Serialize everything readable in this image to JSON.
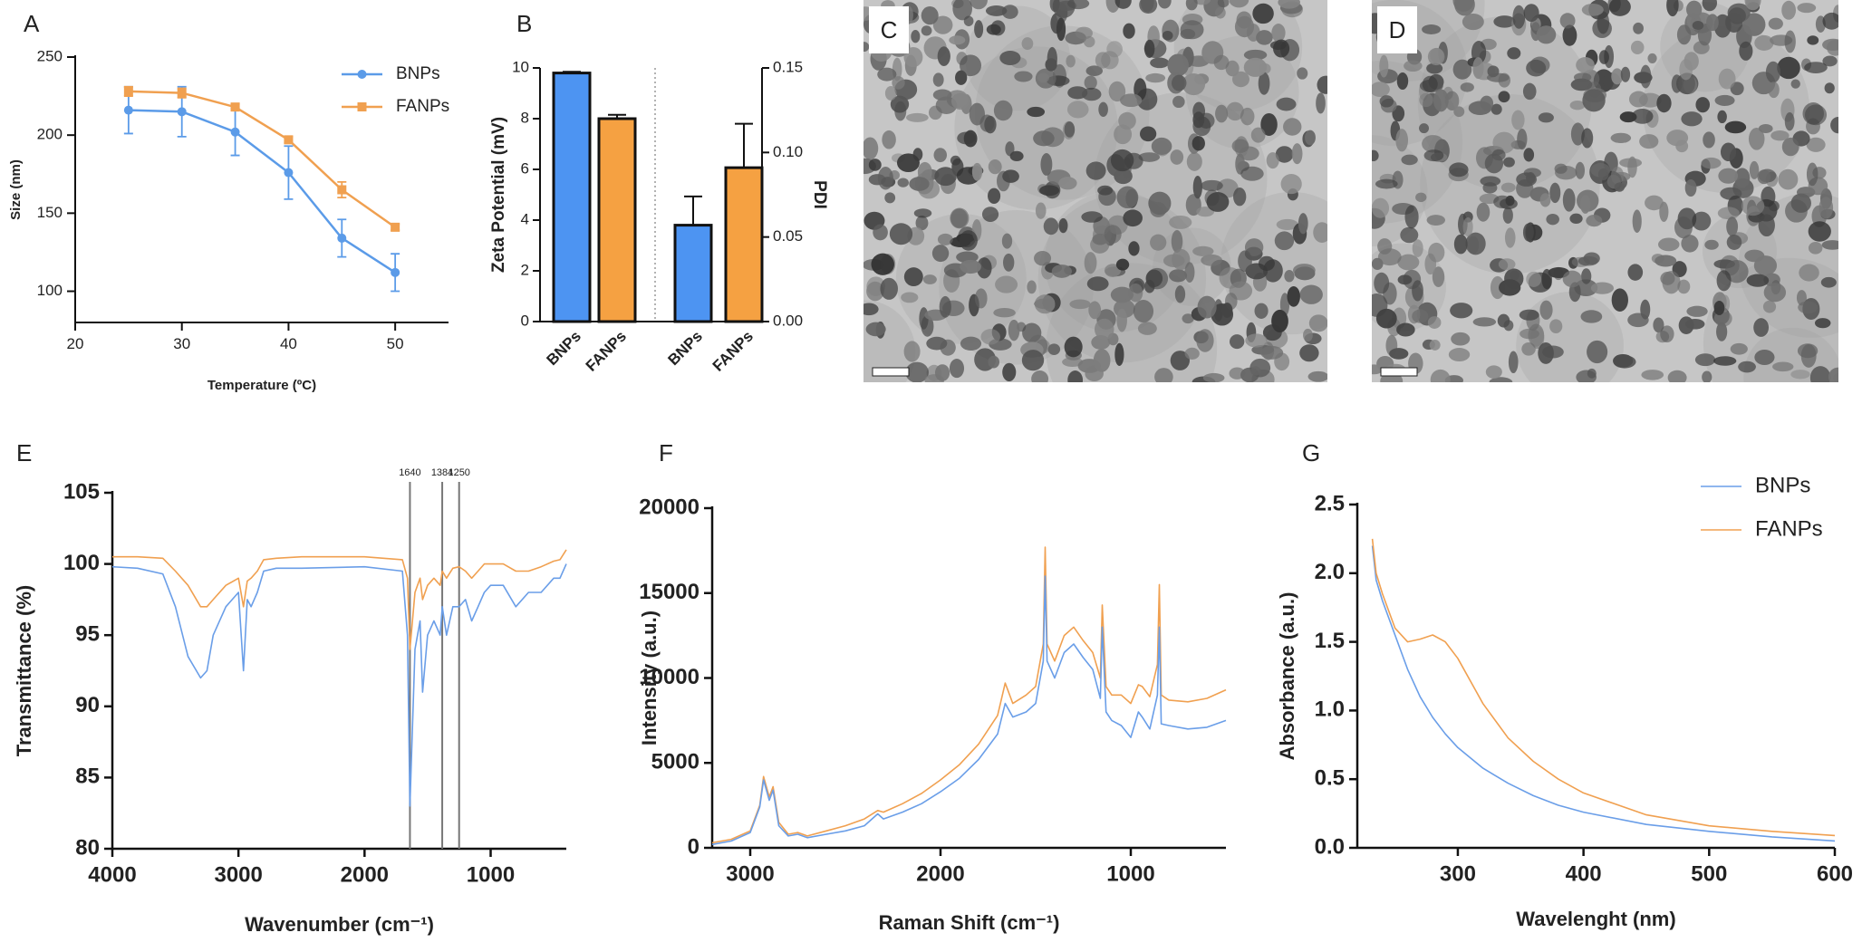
{
  "chart_data": [
    {
      "type": "line",
      "panel": "A",
      "xlabel": "Temperature (ºC)",
      "ylabel": "Size (nm)",
      "x": [
        25,
        30,
        35,
        40,
        45,
        50
      ],
      "xlim": [
        20,
        55
      ],
      "xticks": [
        20,
        30,
        40,
        50
      ],
      "ylim": [
        80,
        250
      ],
      "yticks": [
        100,
        150,
        200,
        250
      ],
      "legend": "upper right",
      "series": [
        {
          "name": "BNPs",
          "color": "#5b9be8",
          "marker": "circle",
          "values": [
            216,
            215,
            202,
            176,
            134,
            112
          ],
          "errors": [
            15,
            16,
            15,
            17,
            12,
            12
          ]
        },
        {
          "name": "FANPs",
          "color": "#f0a050",
          "marker": "square",
          "values": [
            228,
            227,
            218,
            197,
            165,
            141
          ],
          "errors": [
            3,
            3,
            2,
            2,
            5,
            2
          ]
        }
      ]
    },
    {
      "type": "bar",
      "panel": "B",
      "ylabel": "Zeta Potential (mV)",
      "y2label": "PDI",
      "ylim": [
        0,
        10
      ],
      "yticks": [
        0,
        2,
        4,
        6,
        8,
        10
      ],
      "y2lim": [
        0,
        0.15
      ],
      "y2ticks": [
        {
          "value": 0,
          "label": "0.00"
        },
        0.05,
        {
          "value": 0.1,
          "label": "0.10"
        },
        0.15
      ],
      "colors": [
        "#4d94f2",
        "#f5a142"
      ],
      "groups": [
        {
          "axis": "y",
          "categories": [
            "BNPs",
            "FANPs"
          ],
          "values": [
            9.8,
            8.0
          ],
          "errors": [
            0.05,
            0.15
          ]
        },
        {
          "axis": "y2",
          "categories": [
            "BNPs",
            "FANPs"
          ],
          "values": [
            0.057,
            0.091
          ],
          "errors": [
            0.017,
            0.026
          ]
        }
      ]
    },
    {
      "type": "image",
      "panel": "C"
    },
    {
      "type": "image",
      "panel": "D"
    },
    {
      "type": "line",
      "panel": "E",
      "xlabel": "Wavenumber (cm⁻¹)",
      "ylabel": "Transmittance (%)",
      "x": [
        4000,
        3800,
        3600,
        3500,
        3400,
        3300,
        3250,
        3200,
        3100,
        3000,
        2960,
        2930,
        2900,
        2850,
        2800,
        2700,
        2500,
        2000,
        1700,
        1660,
        1640,
        1600,
        1560,
        1540,
        1500,
        1450,
        1400,
        1384,
        1350,
        1300,
        1250,
        1200,
        1150,
        1100,
        1050,
        1000,
        900,
        800,
        700,
        600,
        500,
        450,
        400
      ],
      "xlim": [
        4000,
        400
      ],
      "xticks": [
        4000,
        3000,
        2000,
        1000
      ],
      "ylim": [
        80,
        105
      ],
      "yticks": [
        80,
        85,
        90,
        95,
        100,
        105
      ],
      "vlines": [
        1640,
        1384,
        1250
      ],
      "series": [
        {
          "color": "#6a9ee8",
          "values": [
            99.8,
            99.7,
            99.3,
            97,
            93.5,
            92,
            92.5,
            95,
            97,
            98,
            92.5,
            97.5,
            97,
            98,
            99.5,
            99.7,
            99.7,
            99.8,
            99.5,
            95,
            83,
            94,
            96,
            91,
            95,
            96,
            95,
            97,
            95,
            97,
            97,
            97.5,
            96,
            97,
            98,
            98.5,
            98.5,
            97,
            98,
            98,
            99,
            99,
            100
          ]
        },
        {
          "color": "#f0a050",
          "values": [
            100.5,
            100.5,
            100.4,
            99.5,
            98.5,
            97,
            97,
            97.5,
            98.5,
            99,
            97,
            98.8,
            99,
            99.5,
            100.3,
            100.4,
            100.5,
            100.5,
            100.3,
            99,
            94,
            98,
            99,
            97.5,
            98.5,
            99,
            98.5,
            99.5,
            99,
            99.7,
            99.8,
            99.5,
            99,
            99.5,
            100,
            100,
            100,
            99.5,
            99.5,
            99.8,
            100.2,
            100.3,
            101
          ]
        }
      ]
    },
    {
      "type": "line",
      "panel": "F",
      "xlabel": "Raman Shift (cm⁻¹)",
      "ylabel": "Intensity (a.u.)",
      "x": [
        3200,
        3100,
        3000,
        2950,
        2930,
        2900,
        2880,
        2850,
        2800,
        2750,
        2700,
        2600,
        2500,
        2400,
        2330,
        2300,
        2200,
        2100,
        2000,
        1900,
        1800,
        1700,
        1660,
        1620,
        1550,
        1500,
        1460,
        1450,
        1440,
        1400,
        1350,
        1300,
        1250,
        1200,
        1160,
        1150,
        1130,
        1100,
        1050,
        1000,
        960,
        940,
        900,
        860,
        850,
        840,
        800,
        700,
        600,
        500
      ],
      "xlim": [
        3200,
        500
      ],
      "xticks": [
        3000,
        2000,
        1000
      ],
      "ylim": [
        0,
        20000
      ],
      "yticks": [
        0,
        5000,
        10000,
        15000,
        20000
      ],
      "series": [
        {
          "color": "#f0a050",
          "values": [
            300,
            500,
            1000,
            2500,
            4200,
            3000,
            3600,
            1500,
            800,
            900,
            700,
            1000,
            1300,
            1700,
            2200,
            2100,
            2600,
            3200,
            4000,
            4900,
            6100,
            7800,
            9700,
            8500,
            9000,
            9500,
            12000,
            17700,
            12000,
            11000,
            12500,
            13000,
            12200,
            11500,
            10000,
            14300,
            9500,
            9000,
            9000,
            8500,
            9600,
            9500,
            8900,
            10800,
            15500,
            9000,
            8700,
            8600,
            8800,
            9300
          ]
        },
        {
          "color": "#6a9ee8",
          "values": [
            200,
            400,
            900,
            2400,
            4000,
            2800,
            3400,
            1300,
            700,
            800,
            600,
            800,
            1000,
            1300,
            2000,
            1700,
            2100,
            2600,
            3300,
            4100,
            5200,
            6700,
            8500,
            7700,
            8000,
            8500,
            11000,
            16000,
            11000,
            10000,
            11500,
            12000,
            11200,
            10500,
            8800,
            13000,
            8000,
            7500,
            7200,
            6500,
            8000,
            7700,
            7000,
            9000,
            13000,
            7300,
            7200,
            7000,
            7100,
            7500
          ]
        }
      ]
    },
    {
      "type": "line",
      "panel": "G",
      "xlabel": "Wavelenght (nm)",
      "ylabel": "Absorbance (a.u.)",
      "x": [
        232,
        235,
        240,
        250,
        260,
        270,
        280,
        290,
        300,
        320,
        340,
        360,
        380,
        400,
        450,
        500,
        550,
        600
      ],
      "xlim": [
        220,
        600
      ],
      "xticks": [
        300,
        400,
        500,
        600
      ],
      "ylim": [
        0,
        2.5
      ],
      "yticks": [
        {
          "value": 0,
          "label": "0.0"
        },
        0.5,
        {
          "value": 1,
          "label": "1.0"
        },
        1.5,
        {
          "value": 2,
          "label": "2.0"
        },
        2.5
      ],
      "legend": "upper right",
      "series": [
        {
          "name": "BNPs",
          "color": "#6a9ee8",
          "values": [
            2.2,
            1.95,
            1.8,
            1.55,
            1.3,
            1.1,
            0.95,
            0.83,
            0.73,
            0.58,
            0.47,
            0.38,
            0.31,
            0.26,
            0.17,
            0.12,
            0.08,
            0.05
          ]
        },
        {
          "name": "FANPs",
          "color": "#f0a050",
          "values": [
            2.25,
            2.0,
            1.85,
            1.6,
            1.5,
            1.52,
            1.55,
            1.5,
            1.38,
            1.05,
            0.8,
            0.63,
            0.5,
            0.4,
            0.24,
            0.16,
            0.12,
            0.09
          ]
        }
      ]
    }
  ]
}
